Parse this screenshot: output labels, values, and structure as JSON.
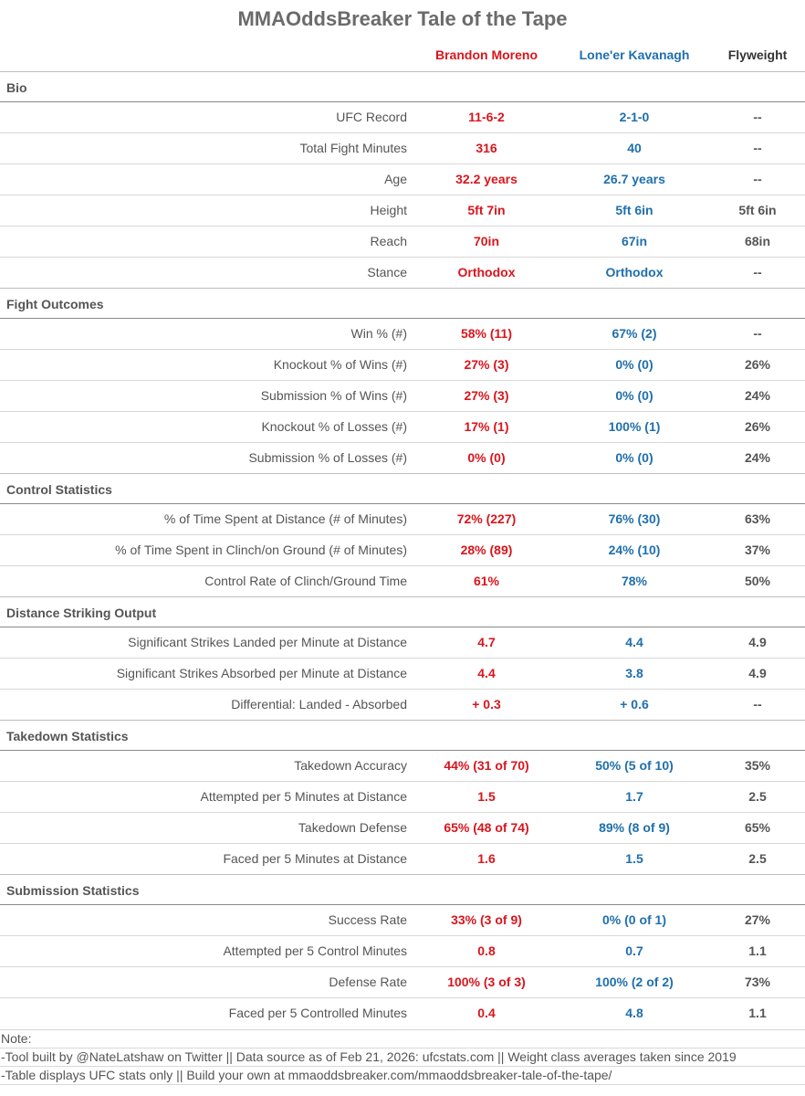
{
  "title": "MMAOddsBreaker Tale of the Tape",
  "columns": {
    "fighter1": "Brandon Moreno",
    "fighter2": "Lone'er Kavanagh",
    "division": "Flyweight"
  },
  "colors": {
    "fighter1": "#d9151c",
    "fighter2": "#1f6fad",
    "division": "#555555"
  },
  "sections": [
    {
      "name": "Bio",
      "rows": [
        {
          "label": "UFC Record",
          "v1": "11-6-2",
          "v2": "2-1-0",
          "v3": "--"
        },
        {
          "label": "Total Fight Minutes",
          "v1": "316",
          "v2": "40",
          "v3": "--"
        },
        {
          "label": "Age",
          "v1": "32.2 years",
          "v2": "26.7 years",
          "v3": "--"
        },
        {
          "label": "Height",
          "v1": "5ft 7in",
          "v2": "5ft 6in",
          "v3": "5ft 6in"
        },
        {
          "label": "Reach",
          "v1": "70in",
          "v2": "67in",
          "v3": "68in"
        },
        {
          "label": "Stance",
          "v1": "Orthodox",
          "v2": "Orthodox",
          "v3": "--"
        }
      ]
    },
    {
      "name": "Fight Outcomes",
      "rows": [
        {
          "label": "Win % (#)",
          "v1": "58% (11)",
          "v2": "67% (2)",
          "v3": "--"
        },
        {
          "label": "Knockout % of Wins (#)",
          "v1": "27% (3)",
          "v2": "0% (0)",
          "v3": "26%"
        },
        {
          "label": "Submission % of Wins (#)",
          "v1": "27% (3)",
          "v2": "0% (0)",
          "v3": "24%"
        },
        {
          "label": "Knockout % of Losses (#)",
          "v1": "17% (1)",
          "v2": "100% (1)",
          "v3": "26%"
        },
        {
          "label": "Submission % of Losses (#)",
          "v1": "0% (0)",
          "v2": "0% (0)",
          "v3": "24%"
        }
      ]
    },
    {
      "name": "Control Statistics",
      "rows": [
        {
          "label": "% of Time Spent at Distance (# of Minutes)",
          "v1": "72% (227)",
          "v2": "76% (30)",
          "v3": "63%"
        },
        {
          "label": "% of Time Spent in Clinch/on Ground (# of Minutes)",
          "v1": "28% (89)",
          "v2": "24% (10)",
          "v3": "37%"
        },
        {
          "label": "Control Rate of Clinch/Ground Time",
          "v1": "61%",
          "v2": "78%",
          "v3": "50%"
        }
      ]
    },
    {
      "name": "Distance Striking Output",
      "rows": [
        {
          "label": "Significant Strikes Landed per Minute at Distance",
          "v1": "4.7",
          "v2": "4.4",
          "v3": "4.9"
        },
        {
          "label": "Significant Strikes Absorbed per Minute at Distance",
          "v1": "4.4",
          "v2": "3.8",
          "v3": "4.9"
        },
        {
          "label": "Differential: Landed - Absorbed",
          "v1": "+ 0.3",
          "v2": "+ 0.6",
          "v3": "--"
        }
      ]
    },
    {
      "name": "Takedown Statistics",
      "rows": [
        {
          "label": "Takedown Accuracy",
          "v1": "44% (31 of 70)",
          "v2": "50% (5 of 10)",
          "v3": "35%"
        },
        {
          "label": "Attempted per 5 Minutes at Distance",
          "v1": "1.5",
          "v2": "1.7",
          "v3": "2.5"
        },
        {
          "label": "Takedown Defense",
          "v1": "65% (48 of 74)",
          "v2": "89% (8 of 9)",
          "v3": "65%"
        },
        {
          "label": "Faced per 5 Minutes at Distance",
          "v1": "1.6",
          "v2": "1.5",
          "v3": "2.5"
        }
      ]
    },
    {
      "name": "Submission Statistics",
      "rows": [
        {
          "label": "Success Rate",
          "v1": "33% (3 of 9)",
          "v2": "0% (0 of 1)",
          "v3": "27%"
        },
        {
          "label": "Attempted per 5 Control Minutes",
          "v1": "0.8",
          "v2": "0.7",
          "v3": "1.1"
        },
        {
          "label": "Defense Rate",
          "v1": "100% (3 of 3)",
          "v2": "100% (2 of 2)",
          "v3": "73%"
        },
        {
          "label": "Faced per 5 Controlled Minutes",
          "v1": "0.4",
          "v2": "4.8",
          "v3": "1.1"
        }
      ]
    }
  ],
  "notes": {
    "heading": "Note:",
    "line1": "-Tool built by @NateLatshaw on Twitter || Data source as of Feb 21, 2026: ufcstats.com || Weight class averages taken since 2019",
    "line2": "-Table displays UFC stats only || Build your own at mmaoddsbreaker.com/mmaoddsbreaker-tale-of-the-tape/"
  }
}
